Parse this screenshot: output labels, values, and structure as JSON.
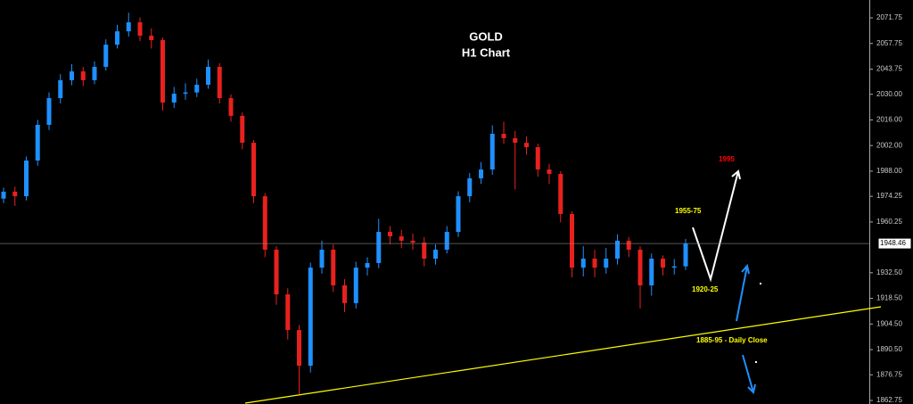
{
  "chart_data": {
    "type": "candlestick",
    "title": "GOLD",
    "subtitle": "H1 Chart",
    "open": [
      1973.0,
      1976.8,
      1974.3,
      1993.8,
      2013.3,
      2027.9,
      2037.7,
      2042.5,
      2037.7,
      2045.0,
      2057.1,
      2064.4,
      2069.3,
      2062.0,
      2059.6,
      2025.5,
      2030.3,
      2031.0,
      2035.2,
      2045.0,
      2027.9,
      2018.2,
      2003.5,
      1974.3,
      1945.1,
      1920.7,
      1901.2,
      1881.7,
      1935.3,
      1945.1,
      1925.6,
      1915.9,
      1935.3,
      1937.8,
      1954.8,
      1952.4,
      1950.0,
      1949.0,
      1940.2,
      1945.1,
      1954.8,
      1974.3,
      1984.1,
      1988.9,
      2008.4,
      2006.0,
      2003.5,
      2001.1,
      1988.9,
      1986.5,
      1964.6,
      1935.3,
      1940.2,
      1935.3,
      1940.2,
      1950.0,
      1945.1,
      1925.6,
      1940.2,
      1935.3,
      1936.0
    ],
    "high": [
      1979.0,
      1979.5,
      1996.0,
      2016.0,
      2031.0,
      2041.0,
      2046.5,
      2045.0,
      2048.0,
      2060.0,
      2068.0,
      2074.5,
      2072.0,
      2066.0,
      2061.0,
      2034.0,
      2036.0,
      2038.5,
      2049.0,
      2047.0,
      2030.0,
      2020.0,
      2005.0,
      1976.0,
      1947.0,
      1924.0,
      1904.0,
      1938.0,
      1950.0,
      1948.0,
      1929.0,
      1938.5,
      1941.0,
      1962.0,
      1958.0,
      1956.0,
      1954.0,
      1952.0,
      1948.0,
      1958.0,
      1977.0,
      1987.0,
      1993.0,
      2013.0,
      2015.0,
      2010.0,
      2007.0,
      2003.0,
      1992.0,
      1988.0,
      1966.0,
      1947.0,
      1945.0,
      1946.0,
      1953.5,
      1952.0,
      1947.0,
      1943.0,
      1942.0,
      1940.0,
      1951.0
    ],
    "low": [
      1970.5,
      1969.0,
      1972.0,
      1991.0,
      2010.5,
      2025.0,
      2035.0,
      2034.5,
      2035.5,
      2043.0,
      2055.0,
      2061.5,
      2059.0,
      2055.0,
      2021.0,
      2022.5,
      2027.0,
      2028.5,
      2033.0,
      2025.0,
      2015.0,
      2000.0,
      1970.5,
      1941.0,
      1915.0,
      1896.0,
      1866.0,
      1878.0,
      1932.0,
      1922.0,
      1911.0,
      1913.0,
      1931.0,
      1935.0,
      1948.0,
      1946.0,
      1945.0,
      1936.0,
      1937.0,
      1943.0,
      1952.0,
      1971.0,
      1981.0,
      1986.0,
      2003.0,
      1978.0,
      1997.0,
      1985.0,
      1981.0,
      1960.0,
      1930.0,
      1930.5,
      1930.0,
      1932.0,
      1937.0,
      1941.0,
      1913.0,
      1920.0,
      1931.0,
      1931.5,
      1934.0
    ],
    "close": [
      1976.8,
      1974.3,
      1993.8,
      2013.3,
      2027.9,
      2037.7,
      2042.5,
      2037.7,
      2045.0,
      2057.1,
      2064.4,
      2069.3,
      2062.0,
      2059.6,
      2025.5,
      2030.3,
      2031.0,
      2035.2,
      2045.0,
      2027.9,
      2018.2,
      2003.5,
      1974.3,
      1945.1,
      1920.7,
      1901.2,
      1881.7,
      1935.3,
      1945.1,
      1925.6,
      1915.9,
      1935.3,
      1937.8,
      1954.8,
      1952.4,
      1950.0,
      1949.0,
      1940.2,
      1945.1,
      1954.8,
      1974.3,
      1984.1,
      1988.9,
      2008.4,
      2006.0,
      2003.5,
      2001.1,
      1988.9,
      1986.5,
      1964.6,
      1935.3,
      1940.2,
      1935.3,
      1940.2,
      1950.0,
      1945.1,
      1925.6,
      1940.2,
      1935.3,
      1936.0,
      1948.5
    ],
    "up_color": "#1e90ff",
    "down_color": "#e8211e",
    "ylim": [
      1860.8,
      2081.5
    ],
    "yticks": [
      2071.75,
      2057.75,
      2043.75,
      {
        "value": 2030,
        "label": "2030.00"
      },
      {
        "value": 2016,
        "label": "2016.00"
      },
      {
        "value": 2002,
        "label": "2002.00"
      },
      {
        "value": 1988,
        "label": "1988.00"
      },
      1974.25,
      1960.25,
      {
        "value": 1932.5,
        "label": "1932.50"
      },
      {
        "value": 1918.5,
        "label": "1918.50"
      },
      {
        "value": 1904.5,
        "label": "1904.50"
      },
      {
        "value": 1890.5,
        "label": "1890.50"
      },
      1876.75,
      1862.75
    ],
    "last_price": 1948.46,
    "annotations": [
      {
        "text": "1955-75",
        "color": "#ffff00"
      },
      {
        "text": "1995",
        "color": "#ff0000"
      },
      {
        "text": "1920-25",
        "color": "#ffff00"
      },
      {
        "text": "1885-95 - Daily Close",
        "color": "#ffff00"
      }
    ]
  }
}
